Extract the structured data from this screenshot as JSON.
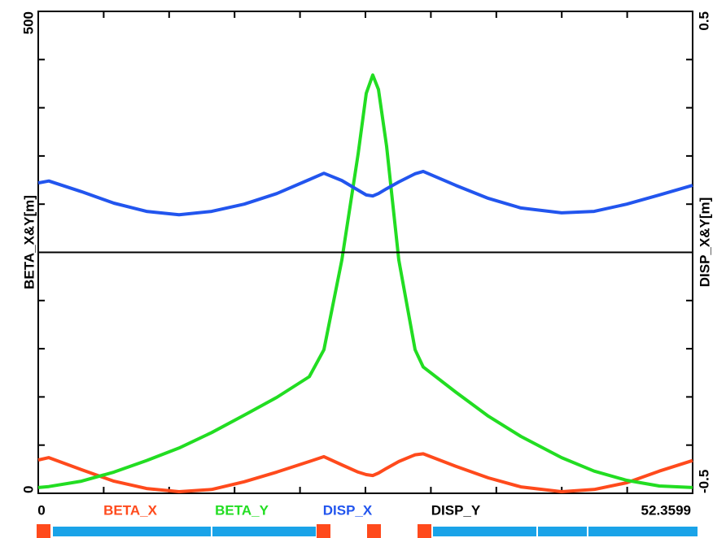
{
  "chart_data": {
    "type": "line",
    "ylabel": "BETA_X&Y[m]",
    "y2label": "DISP_X&Y[m]",
    "x": [
      0,
      0.847,
      3.452,
      6.057,
      8.662,
      11.266,
      13.871,
      16.476,
      19.081,
      21.686,
      22.859,
      24.291,
      25.594,
      26.245,
      26.766,
      27.222,
      27.873,
      28.85,
      30.152,
      30.806,
      33.409,
      36.014,
      38.619,
      41.875,
      44.48,
      47.084,
      49.689,
      52.3599
    ],
    "series": [
      {
        "name": "BETA_X",
        "color": "#ff4a1c",
        "axis": "y",
        "values": [
          34.6,
          37,
          24.5,
          12.6,
          5,
          1.7,
          4,
          12,
          22,
          33,
          38,
          29.5,
          22,
          19.4,
          18.5,
          21,
          26,
          33,
          40,
          41,
          28,
          16,
          6.7,
          1.7,
          4,
          11,
          23,
          34
        ]
      },
      {
        "name": "BETA_Y",
        "color": "#22dd22",
        "axis": "y",
        "values": [
          6,
          7,
          12.6,
          22,
          34,
          47,
          63,
          81,
          99.5,
          121,
          149,
          242,
          352,
          415,
          434,
          419,
          360,
          242,
          149,
          131,
          105,
          80,
          59,
          37,
          23,
          13.5,
          7.6,
          6
        ]
      },
      {
        "name": "DISP_X",
        "color": "#2255ee",
        "axis": "y2",
        "values": [
          0.144,
          0.148,
          0.126,
          0.102,
          0.085,
          0.078,
          0.085,
          0.1,
          0.122,
          0.151,
          0.164,
          0.149,
          0.129,
          0.119,
          0.117,
          0.122,
          0.132,
          0.146,
          0.163,
          0.168,
          0.139,
          0.112,
          0.092,
          0.082,
          0.085,
          0.1,
          0.119,
          0.139
        ]
      },
      {
        "name": "DISP_Y",
        "color": "#000000",
        "axis": "y2",
        "values": [
          0,
          0,
          0,
          0,
          0,
          0,
          0,
          0,
          0,
          0,
          0,
          0,
          0,
          0,
          0,
          0,
          0,
          0,
          0,
          0,
          0,
          0,
          0,
          0,
          0,
          0,
          0,
          0
        ]
      }
    ],
    "xlim": [
      0,
      52.3599
    ],
    "xticks": [
      0,
      52.3599
    ],
    "xminorticks": [
      5.236,
      10.472,
      15.708,
      20.944,
      26.18,
      31.416,
      36.652,
      41.888,
      47.124
    ],
    "ylim": [
      0,
      500
    ],
    "yticks": [
      0,
      500
    ],
    "yminorticks": [
      50,
      100,
      150,
      200,
      250,
      300,
      350,
      400,
      450
    ],
    "y2lim": [
      -0.5,
      0.5
    ],
    "y2ticks": [
      -0.5,
      0.5
    ],
    "y2minorticks": [
      -0.4,
      -0.3,
      -0.2,
      -0.1,
      0,
      0.1,
      0.2,
      0.3,
      0.4
    ]
  }
}
